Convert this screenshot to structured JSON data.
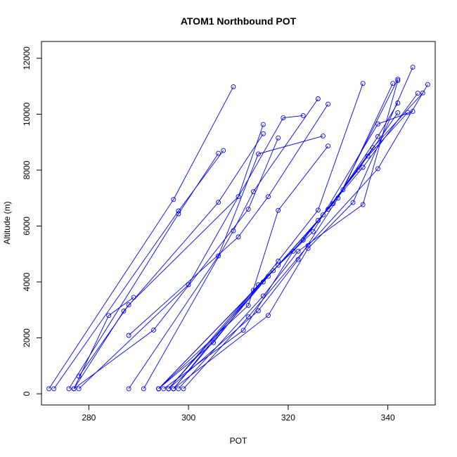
{
  "chart_data": {
    "type": "scatter",
    "title": "ATOM1 Northbound POT",
    "xlabel": "POT",
    "ylabel": "Altitude (m)",
    "xlim": [
      270.5,
      349.5
    ],
    "ylim": [
      -400,
      12600
    ],
    "xticks": [
      280,
      300,
      320,
      340
    ],
    "yticks": [
      0,
      2000,
      4000,
      6000,
      8000,
      10000,
      12000
    ],
    "grid": false,
    "series_color": "#0000ff",
    "profiles": [
      {
        "x": [
          272,
          297,
          309
        ],
        "y": [
          180,
          6950,
          10980
        ]
      },
      {
        "x": [
          273,
          298,
          307
        ],
        "y": [
          180,
          6540,
          8700
        ]
      },
      {
        "x": [
          276,
          298,
          306
        ],
        "y": [
          180,
          6440,
          8600
        ]
      },
      {
        "x": [
          277,
          284,
          289
        ],
        "y": [
          180,
          2800,
          3450
        ]
      },
      {
        "x": [
          277,
          287,
          306,
          315
        ],
        "y": [
          180,
          2960,
          6850,
          9300
        ]
      },
      {
        "x": [
          278,
          288,
          310,
          315
        ],
        "y": [
          630,
          3180,
          7050,
          9630
        ]
      },
      {
        "x": [
          278,
          300,
          319,
          323
        ],
        "y": [
          180,
          3900,
          9870,
          9950
        ]
      },
      {
        "x": [
          277,
          293,
          312,
          318
        ],
        "y": [
          180,
          2280,
          6600,
          9150
        ]
      },
      {
        "x": [
          288,
          306,
          314,
          327
        ],
        "y": [
          180,
          4930,
          8580,
          9220
        ]
      },
      {
        "x": [
          291,
          309,
          313,
          326
        ],
        "y": [
          180,
          5830,
          7230,
          10550
        ]
      },
      {
        "x": [
          288,
          310,
          316,
          328
        ],
        "y": [
          2090,
          5610,
          7050,
          10360
        ]
      },
      {
        "x": [
          294,
          312,
          318,
          328
        ],
        "y": [
          180,
          3160,
          6560,
          8860
        ]
      },
      {
        "x": [
          294,
          305,
          318,
          326,
          335
        ],
        "y": [
          180,
          1830,
          4750,
          6570,
          11100
        ]
      },
      {
        "x": [
          295,
          311,
          321,
          331,
          341
        ],
        "y": [
          180,
          2270,
          5100,
          7300,
          11100
        ]
      },
      {
        "x": [
          296,
          314,
          322,
          330,
          342
        ],
        "y": [
          180,
          2970,
          4800,
          7000,
          11250
        ]
      },
      {
        "x": [
          297,
          316,
          324,
          333,
          345
        ],
        "y": [
          180,
          2800,
          5200,
          6840,
          11680
        ]
      },
      {
        "x": [
          298,
          315,
          322,
          335,
          342
        ],
        "y": [
          180,
          3500,
          5100,
          6770,
          11200
        ]
      },
      {
        "x": [
          299,
          312,
          324,
          338,
          348
        ],
        "y": [
          180,
          2750,
          5300,
          8050,
          11060
        ]
      },
      {
        "x": [
          296,
          313,
          323,
          334,
          342
        ],
        "y": [
          180,
          3700,
          5500,
          8000,
          10050
        ]
      },
      {
        "x": [
          297,
          314,
          325,
          338,
          345
        ],
        "y": [
          180,
          3900,
          5800,
          9650,
          10100
        ]
      },
      {
        "x": [
          296,
          315,
          326,
          335,
          346
        ],
        "y": [
          180,
          4000,
          6200,
          8100,
          10750
        ]
      },
      {
        "x": [
          297,
          316,
          327,
          336,
          344
        ],
        "y": [
          180,
          4200,
          6400,
          8500,
          10060
        ]
      },
      {
        "x": [
          294,
          317,
          328,
          337,
          347
        ],
        "y": [
          180,
          4400,
          6600,
          8800,
          10760
        ]
      },
      {
        "x": [
          294,
          318,
          329,
          338,
          342
        ],
        "y": [
          180,
          4600,
          6800,
          9200,
          10400
        ]
      }
    ]
  }
}
